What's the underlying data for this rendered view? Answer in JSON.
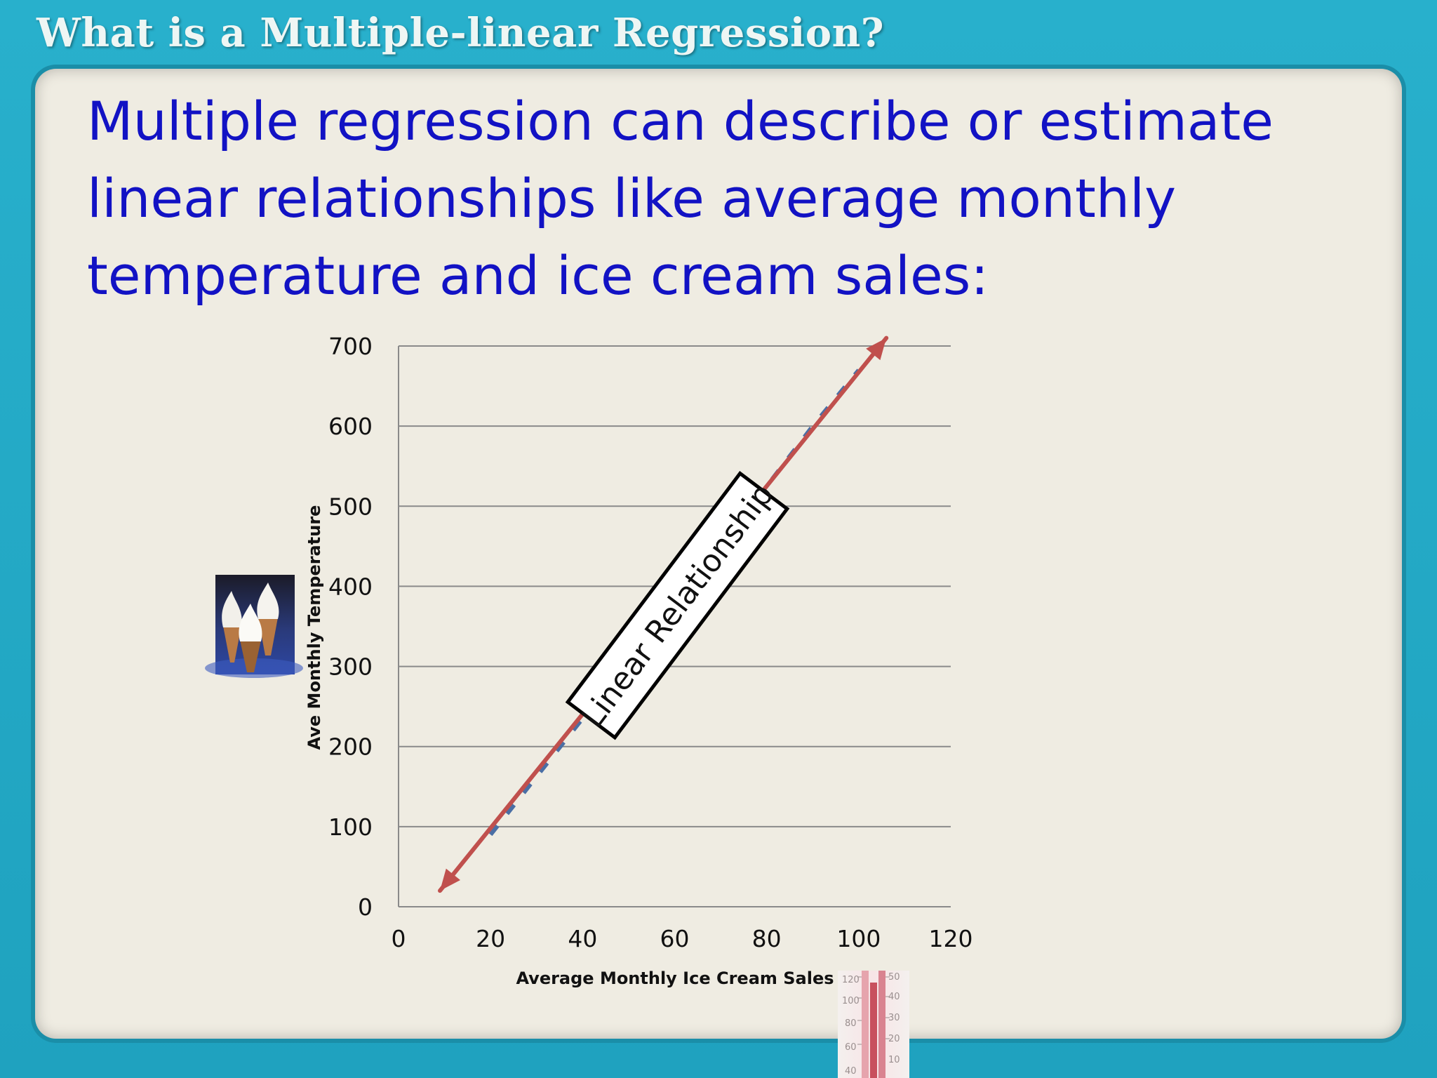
{
  "slide": {
    "title": "What is a Multiple-linear Regression?",
    "body": "Multiple regression can describe or estimate linear relationships like average monthly temperature and ice cream sales:",
    "colors": {
      "frame": "#23a9c6",
      "panel": "#efece2",
      "body_text": "#1212c4",
      "trend_line": "#c0504d",
      "data_line": "#4a6fa5"
    },
    "images": [
      "ice-cream-cones-photo",
      "thermometer-photo"
    ]
  },
  "chart_data": {
    "type": "line",
    "title": "",
    "xlabel": "Average Monthly Ice Cream Sales",
    "ylabel": "Ave Monthly Temperature",
    "xlim": [
      0,
      120
    ],
    "ylim": [
      0,
      700
    ],
    "x_ticks": [
      0,
      20,
      40,
      60,
      80,
      100,
      120
    ],
    "y_ticks": [
      0,
      100,
      200,
      300,
      400,
      500,
      600,
      700
    ],
    "grid": "horizontal",
    "series": [
      {
        "style": "dashed",
        "x": [
          20,
          40,
          50,
          60,
          70,
          80,
          90,
          100
        ],
        "y": [
          90,
          235,
          310,
          380,
          455,
          525,
          600,
          670
        ]
      }
    ],
    "trend_arrow": {
      "from": [
        9,
        20
      ],
      "to": [
        106,
        710
      ],
      "double_headed": true
    },
    "annotation": {
      "text": "Linear Relationship",
      "at": [
        60,
        370
      ]
    }
  }
}
